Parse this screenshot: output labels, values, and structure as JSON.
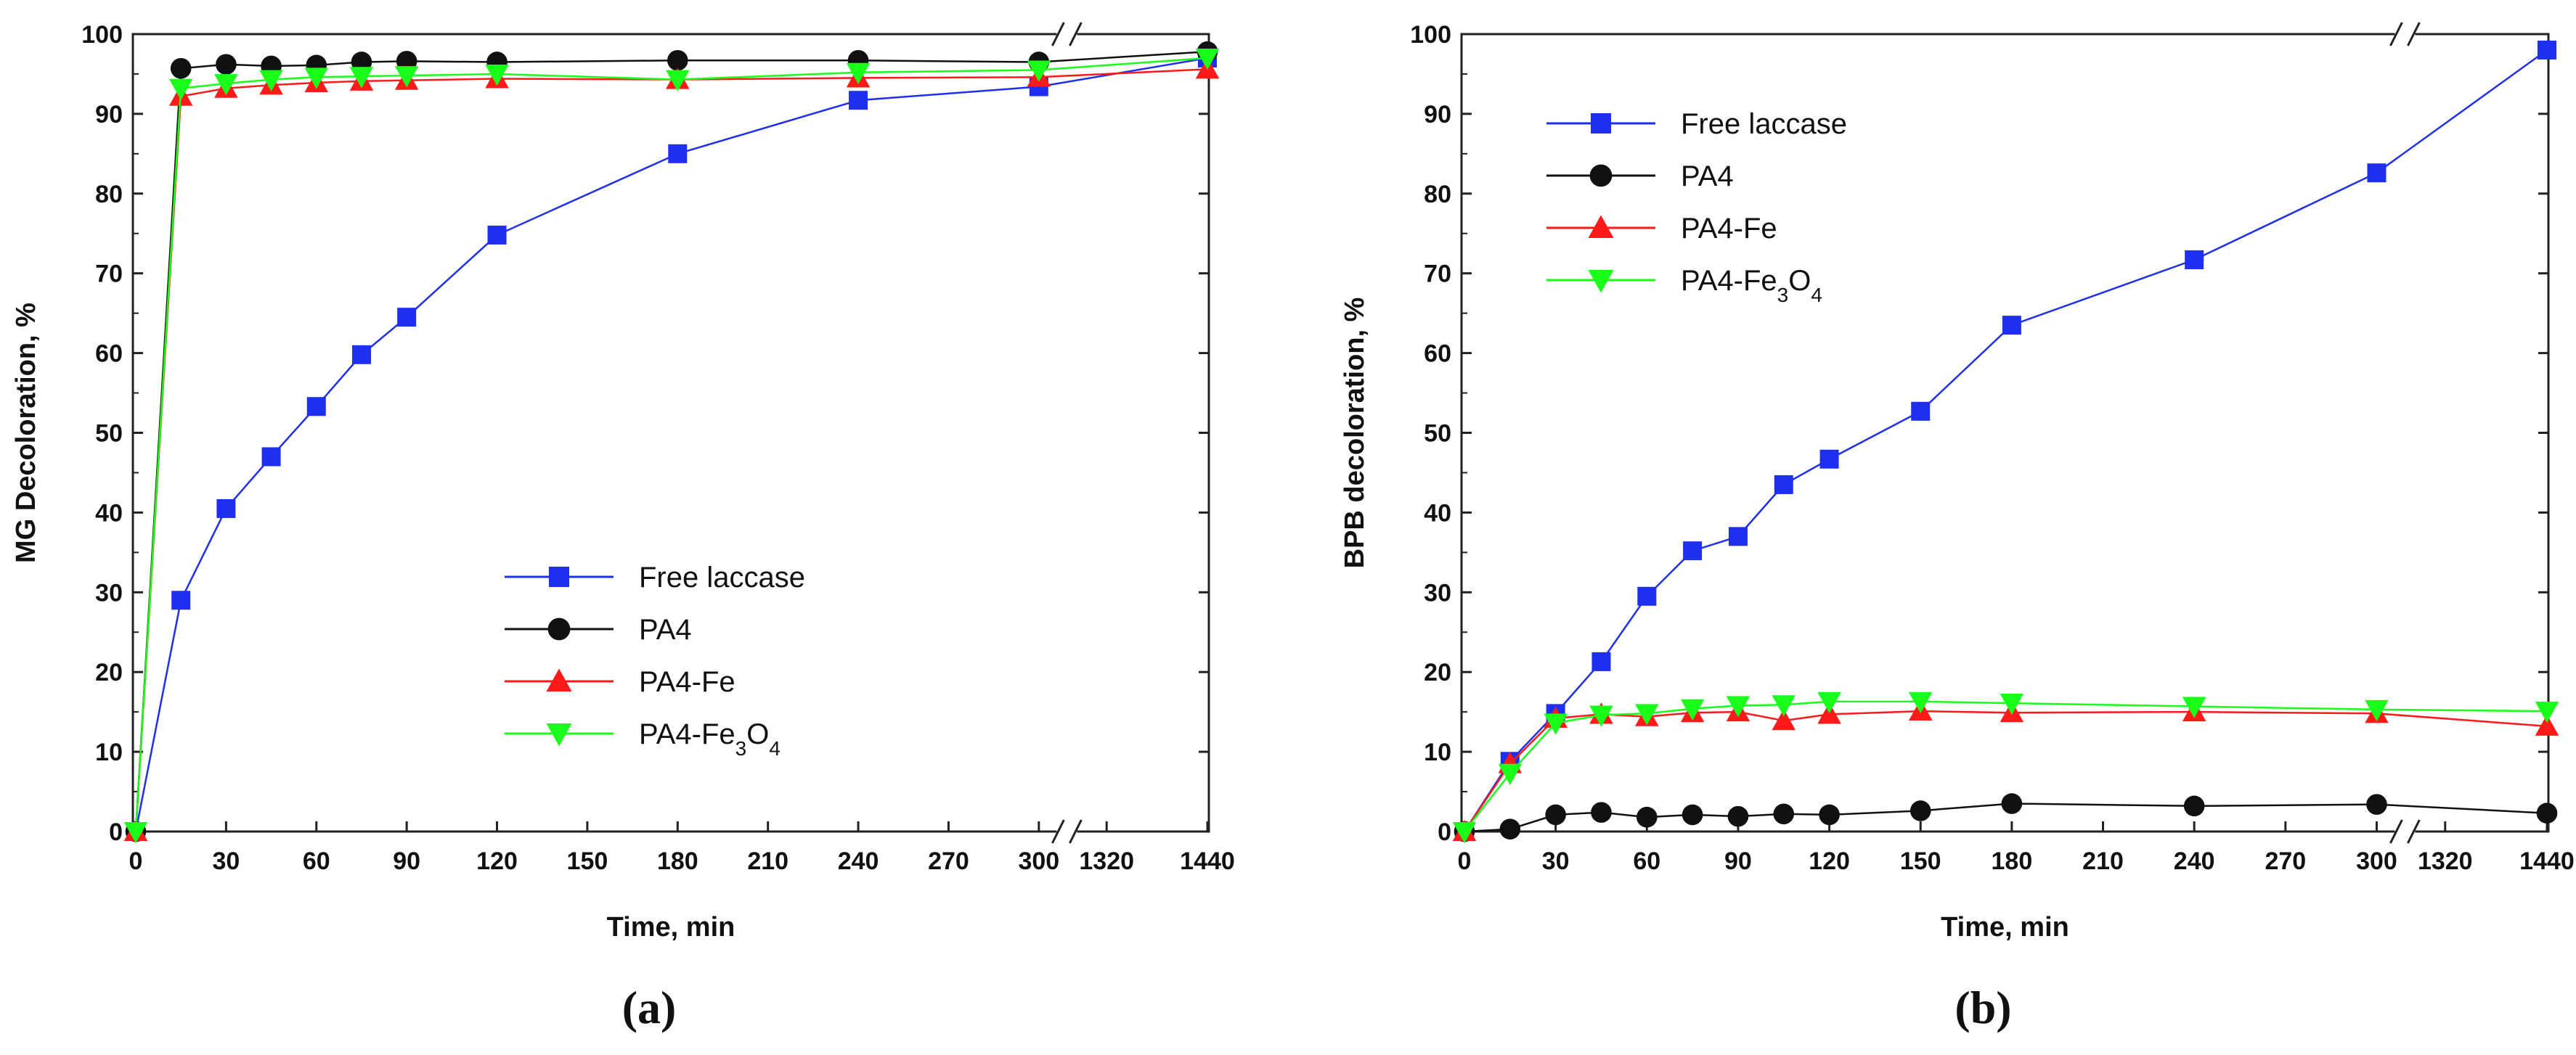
{
  "chart_data": [
    {
      "type": "line",
      "panel_label": "(a)",
      "title": "",
      "xlabel": "Time, min",
      "ylabel": "MG Decoloration, %",
      "ylim": [
        0,
        100
      ],
      "yticks": [
        0,
        10,
        20,
        30,
        40,
        50,
        60,
        70,
        80,
        90,
        100
      ],
      "xticks": [
        "0",
        "30",
        "60",
        "90",
        "120",
        "150",
        "180",
        "210",
        "240",
        "270",
        "300",
        "1320",
        "1440"
      ],
      "x_axis_break": "between 300 and 1320",
      "legend_position": "center",
      "series": [
        {
          "name": "Free laccase",
          "color": "#1f2ff0",
          "marker": "square",
          "x": [
            0,
            15,
            30,
            45,
            60,
            75,
            90,
            120,
            180,
            240,
            300,
            1440
          ],
          "values": [
            0,
            29,
            40.5,
            47,
            53.3,
            59.8,
            64.5,
            74.8,
            85,
            91.7,
            93.4,
            97
          ]
        },
        {
          "name": "PA4",
          "color": "#111111",
          "marker": "circle",
          "x": [
            0,
            15,
            30,
            45,
            60,
            75,
            90,
            120,
            180,
            240,
            300,
            1440
          ],
          "values": [
            0,
            95.7,
            96.2,
            96,
            96.1,
            96.5,
            96.6,
            96.5,
            96.7,
            96.7,
            96.5,
            97.8
          ]
        },
        {
          "name": "PA4-Fe",
          "color": "#ff1a1a",
          "marker": "triangle-up",
          "x": [
            0,
            15,
            30,
            45,
            60,
            75,
            90,
            120,
            180,
            240,
            300,
            1440
          ],
          "values": [
            0,
            92.2,
            93.2,
            93.6,
            93.9,
            94.1,
            94.2,
            94.4,
            94.3,
            94.5,
            94.6,
            95.6
          ]
        },
        {
          "name": "PA4-Fe3O4",
          "color": "#1aff1a",
          "marker": "triangle-down",
          "x": [
            0,
            15,
            30,
            45,
            60,
            75,
            90,
            120,
            180,
            240,
            300,
            1440
          ],
          "values": [
            0,
            93.2,
            93.8,
            94.3,
            94.6,
            94.7,
            94.8,
            95,
            94.3,
            95.2,
            95.5,
            97
          ]
        }
      ]
    },
    {
      "type": "line",
      "panel_label": "(b)",
      "title": "",
      "xlabel": "Time, min",
      "ylabel": "BPB decoloration, %",
      "ylim": [
        0,
        100
      ],
      "yticks": [
        0,
        10,
        20,
        30,
        40,
        50,
        60,
        70,
        80,
        90,
        100
      ],
      "xticks": [
        "0",
        "30",
        "60",
        "90",
        "120",
        "150",
        "180",
        "210",
        "240",
        "270",
        "300",
        "1320",
        "1440"
      ],
      "x_axis_break": "between 300 and 1320",
      "legend_position": "top-left",
      "series": [
        {
          "name": "Free laccase",
          "color": "#1f2ff0",
          "marker": "square",
          "x": [
            0,
            15,
            30,
            45,
            60,
            75,
            90,
            105,
            120,
            150,
            180,
            240,
            300,
            1440
          ],
          "values": [
            0,
            8.8,
            14.8,
            21.3,
            29.5,
            35.2,
            37,
            43.5,
            46.7,
            52.7,
            63.5,
            71.7,
            82.6,
            98
          ]
        },
        {
          "name": "PA4",
          "color": "#111111",
          "marker": "circle",
          "x": [
            0,
            15,
            30,
            45,
            60,
            75,
            90,
            105,
            120,
            150,
            180,
            240,
            300,
            1440
          ],
          "values": [
            0,
            0.3,
            2.1,
            2.4,
            1.8,
            2.1,
            1.9,
            2.2,
            2.1,
            2.6,
            3.5,
            3.2,
            3.4,
            2.3
          ]
        },
        {
          "name": "PA4-Fe",
          "color": "#ff1a1a",
          "marker": "triangle-up",
          "x": [
            0,
            15,
            30,
            45,
            60,
            75,
            90,
            105,
            120,
            150,
            180,
            240,
            300,
            1440
          ],
          "values": [
            0,
            8.5,
            14.2,
            14.7,
            14.4,
            14.9,
            15,
            13.9,
            14.7,
            15.1,
            14.9,
            15,
            14.8,
            13.2
          ]
        },
        {
          "name": "PA4-Fe3O4",
          "color": "#1aff1a",
          "marker": "triangle-down",
          "x": [
            0,
            15,
            30,
            45,
            60,
            75,
            90,
            105,
            120,
            150,
            180,
            240,
            300,
            1440
          ],
          "values": [
            0,
            7.3,
            13.6,
            14.6,
            14.8,
            15.4,
            15.8,
            15.9,
            16.3,
            16.3,
            16.1,
            15.7,
            15.3,
            15.1
          ]
        }
      ]
    }
  ]
}
